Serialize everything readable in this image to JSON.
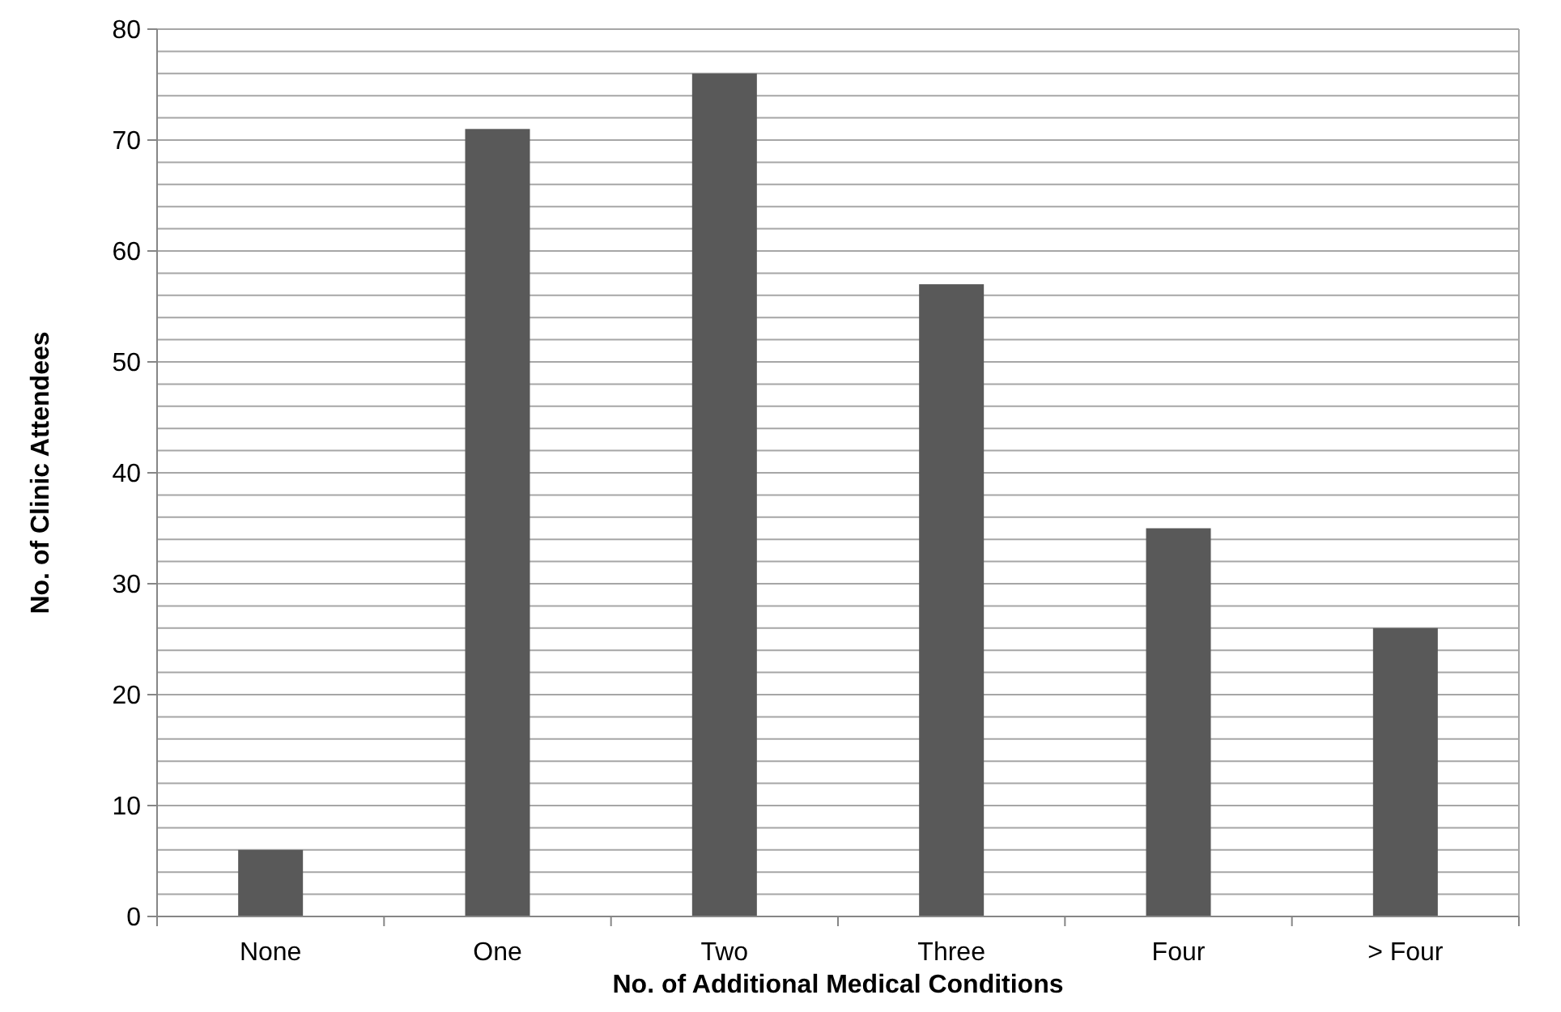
{
  "chart_data": {
    "type": "bar",
    "xlabel": "No. of Additional Medical Conditions",
    "ylabel": "No. of Clinic Attendees",
    "categories": [
      "None",
      "One",
      "Two",
      "Three",
      "Four",
      "> Four"
    ],
    "values": [
      6,
      71,
      76,
      57,
      35,
      26
    ],
    "color": "#595959",
    "ylim": [
      0,
      80
    ],
    "yticks": [
      0,
      {
        "value": 2,
        "label": null
      },
      {
        "value": 4,
        "label": null
      },
      {
        "value": 6,
        "label": null
      },
      {
        "value": 8,
        "label": null
      },
      10,
      {
        "value": 12,
        "label": null
      },
      {
        "value": 14,
        "label": null
      },
      {
        "value": 16,
        "label": null
      },
      {
        "value": 18,
        "label": null
      },
      20,
      {
        "value": 22,
        "label": null
      },
      {
        "value": 24,
        "label": null
      },
      {
        "value": 26,
        "label": null
      },
      {
        "value": 28,
        "label": null
      },
      30,
      {
        "value": 32,
        "label": null
      },
      {
        "value": 34,
        "label": null
      },
      {
        "value": 36,
        "label": null
      },
      {
        "value": 38,
        "label": null
      },
      40,
      {
        "value": 42,
        "label": null
      },
      {
        "value": 44,
        "label": null
      },
      {
        "value": 46,
        "label": null
      },
      {
        "value": 48,
        "label": null
      },
      50,
      {
        "value": 52,
        "label": null
      },
      {
        "value": 54,
        "label": null
      },
      {
        "value": 56,
        "label": null
      },
      {
        "value": 58,
        "label": null
      },
      60,
      {
        "value": 62,
        "label": null
      },
      {
        "value": 64,
        "label": null
      },
      {
        "value": 66,
        "label": null
      },
      {
        "value": 68,
        "label": null
      },
      70,
      {
        "value": 72,
        "label": null
      },
      {
        "value": 74,
        "label": null
      },
      {
        "value": 76,
        "label": null
      },
      {
        "value": 78,
        "label": null
      },
      80
    ],
    "grid": true
  }
}
